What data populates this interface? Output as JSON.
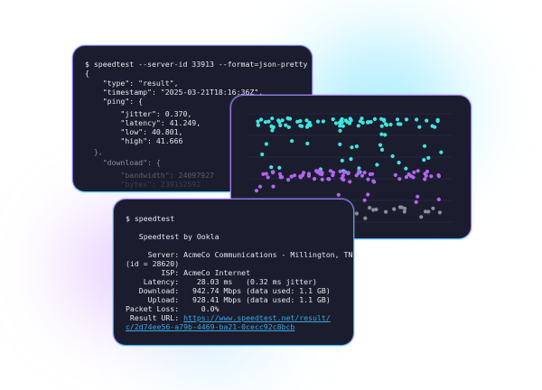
{
  "json_terminal": {
    "command": "$ speedtest --server-id 33913 --format=json-pretty",
    "lines": [
      "{",
      "    \"type\": \"result\",",
      "    \"timestamp\": \"2025-03-21T18:16:36Z\",",
      "    \"ping\": {",
      "        \"jitter\": 0.370,",
      "        \"latency\": 41.249,",
      "        \"low\": 40.801,",
      "        \"high\": 41.666",
      "  },",
      "    \"download\": {",
      "        \"bandwidth\": 24097927",
      "        \"bytes\": 239152592"
    ]
  },
  "chart_colors": {
    "upper": "#3ee6e0",
    "middle": "#b464f0",
    "lower": "#8e8e96",
    "grid": "#2a2d45"
  },
  "cli_terminal": {
    "command": "$ speedtest",
    "banner": "   Speedtest by Ookla",
    "lines": [
      "     Server: AcmeCo Communications - Millington, TN",
      "(id = 28620)",
      "        ISP: AcmeCo Internet",
      "    Latency:    28.03 ms   (0.32 ms jitter)",
      "   Download:   942.74 Mbps (data used: 1.1 GB)",
      "     Upload:   928.41 Mbps (data used: 1.1 GB)",
      "Packet Loss:     0.0%"
    ],
    "result_label": " Result URL: ",
    "result_url_1": "https://www.speedtest.net/result/",
    "result_url_2": "c/2d74ee56-a79b-4469-ba21-0cecc92c8bcb"
  }
}
